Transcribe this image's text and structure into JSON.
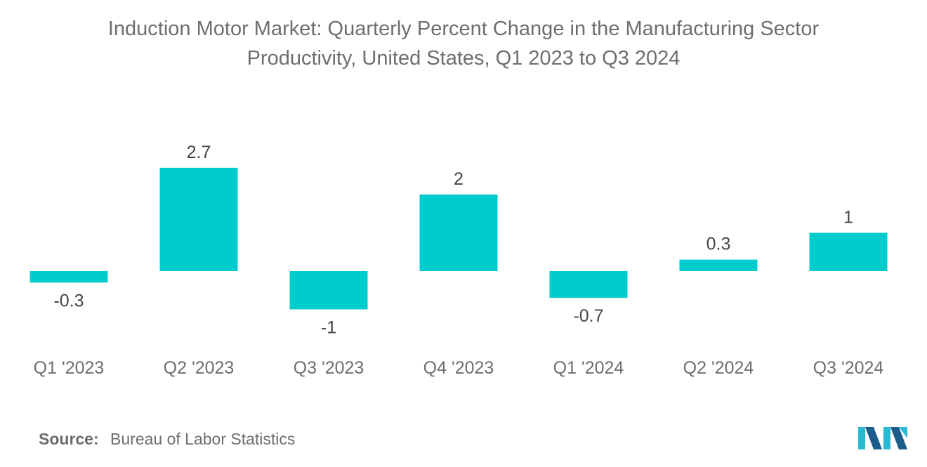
{
  "chart_data": {
    "type": "bar",
    "title_lines": [
      "Induction Motor Market: Quarterly Percent Change in the Manufacturing Sector",
      "Productivity, United States, Q1 2023 to Q3 2024"
    ],
    "categories": [
      "Q1 '2023",
      "Q2 '2023",
      "Q3 '2023",
      "Q4 '2023",
      "Q1 '2024",
      "Q2 '2024",
      "Q3 '2024"
    ],
    "values": [
      -0.3,
      2.7,
      -1,
      2,
      -0.7,
      0.3,
      1
    ],
    "value_labels": [
      "-0.3",
      "2.7",
      "-1",
      "2",
      "-0.7",
      "0.3",
      "1"
    ],
    "xlabel": "",
    "ylabel": "",
    "ylim": [
      -1,
      2.7
    ],
    "grid": false,
    "legend": "none",
    "bar_color": "#00cccd"
  },
  "source": {
    "label": "Source:",
    "text": "Bureau of Labor Statistics"
  },
  "colors": {
    "text": "#6e6e6e",
    "value_text": "#444444",
    "logo_dark": "#1a5d8a",
    "logo_light": "#29b9d3"
  },
  "logo_icon": "mordor-intelligence-logo-icon"
}
